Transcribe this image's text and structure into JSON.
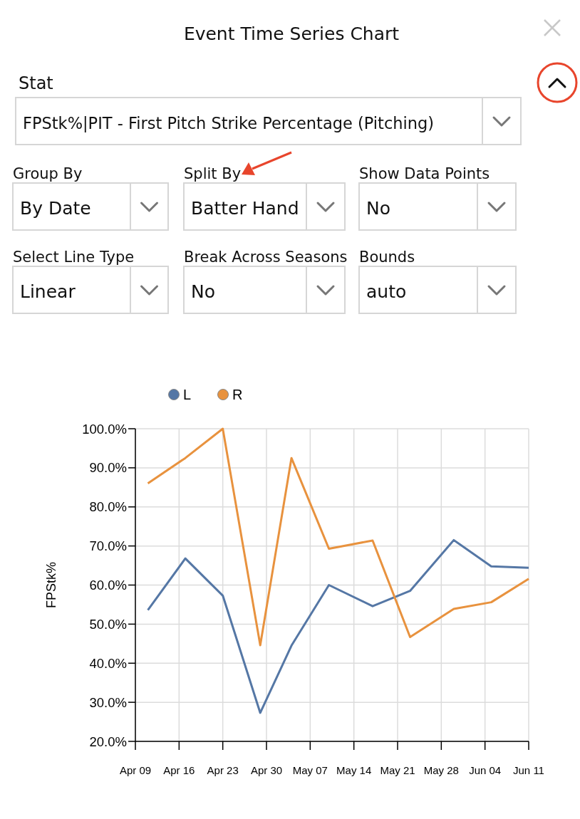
{
  "chart_data": {
    "type": "line",
    "title": "Event Time Series Chart",
    "annotations": [
      "Stat",
      "FPStk%|PIT - First Pitch Strike Percentage (Pitching)",
      "Group By",
      "By Date",
      "Split By",
      "Batter Hand",
      "Show Data Points",
      "No",
      "Select Line Type",
      "Linear",
      "Break Across Seasons",
      "No",
      "Bounds",
      "auto"
    ],
    "ylabel": "FPStk%",
    "x": [
      "--04-11",
      "--04-17",
      "--04-23",
      "--04-29",
      "--05-04",
      "--05-10",
      "--05-17",
      "--05-23",
      "--05-30",
      "--06-05",
      "--06-11"
    ],
    "series": [
      {
        "name": "L",
        "color": "#5577a5",
        "values": [
          53.6,
          66.8,
          57.3,
          27.3,
          44.5,
          60.0,
          54.6,
          58.5,
          71.5,
          64.8,
          64.4
        ]
      },
      {
        "name": "R",
        "color": "#e8923e",
        "values": [
          86.0,
          92.5,
          100.0,
          44.6,
          92.5,
          69.3,
          71.4,
          46.7,
          53.9,
          55.6,
          61.6
        ]
      }
    ],
    "xlim": [
      "--04-09",
      "--06-11"
    ],
    "xticks": [
      {
        "value": "--04-09",
        "label": "Apr 09"
      },
      {
        "value": "--04-16",
        "label": "Apr 16"
      },
      {
        "value": "--04-23",
        "label": "Apr 23"
      },
      {
        "value": "--04-30",
        "label": "Apr 30"
      },
      {
        "value": "--05-07",
        "label": "May 07"
      },
      {
        "value": "--05-14",
        "label": "May 14"
      },
      {
        "value": "--05-21",
        "label": "May 21"
      },
      {
        "value": "--05-28",
        "label": "May 28"
      },
      {
        "value": "--06-04",
        "label": "Jun 04"
      },
      {
        "value": "--06-11",
        "label": "Jun 11"
      }
    ],
    "ylim": [
      20,
      100
    ],
    "yticks": [
      {
        "value": 20,
        "label": "20.0%"
      },
      {
        "value": 30,
        "label": "30.0%"
      },
      {
        "value": 40,
        "label": "40.0%"
      },
      {
        "value": 50,
        "label": "50.0%"
      },
      {
        "value": 60,
        "label": "60.0%"
      },
      {
        "value": 70,
        "label": "70.0%"
      },
      {
        "value": 80,
        "label": "80.0%"
      },
      {
        "value": 90,
        "label": "90.0%"
      },
      {
        "value": 100,
        "label": "100.0%"
      }
    ],
    "grid": true,
    "legend": "top"
  }
}
